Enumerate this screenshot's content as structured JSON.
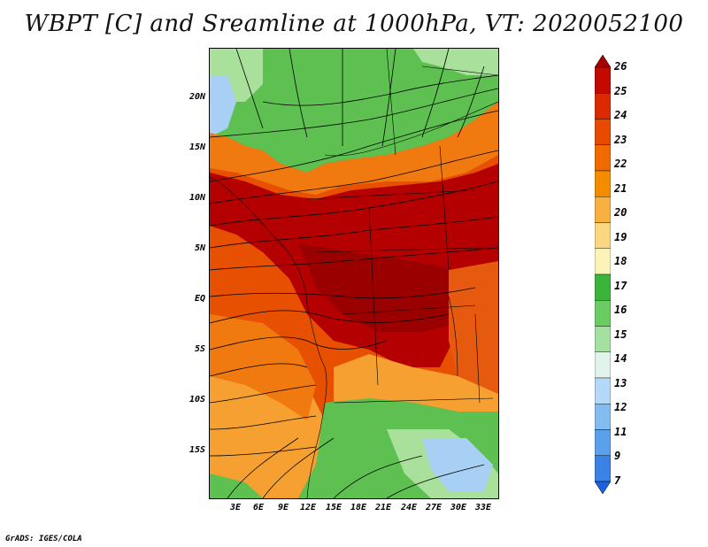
{
  "title": "WBPT [C] and Sreamline at 1000hPa, VT: 2020052100",
  "footer": "GrADS: IGES/COLA",
  "lat_labels": [
    "20N",
    "15N",
    "10N",
    "5N",
    "EQ",
    "5S",
    "10S",
    "15S"
  ],
  "lon_labels": [
    "3E",
    "6E",
    "9E",
    "12E",
    "15E",
    "18E",
    "21E",
    "24E",
    "27E",
    "30E",
    "33E"
  ],
  "colorbar": {
    "levels": [
      "26",
      "25",
      "24",
      "23",
      "22",
      "21",
      "20",
      "19",
      "18",
      "17",
      "16",
      "15",
      "14",
      "13",
      "12",
      "11",
      "9",
      "7"
    ],
    "colors": [
      "#a50000",
      "#c40a00",
      "#dc2a00",
      "#e84a00",
      "#f06a00",
      "#f48c00",
      "#f8b040",
      "#fbd680",
      "#fcf3b8",
      "#3cb43c",
      "#6ccc64",
      "#a4e0a0",
      "#e0f4ec",
      "#b4d8f8",
      "#84bcf0",
      "#5aa0ea",
      "#3a82e4",
      "#1c62dc"
    ]
  },
  "colors": {
    "hot": "#b40000",
    "warm": "#e65000",
    "orange": "#f5a030",
    "green": "#5ec050",
    "lightgreen": "#a8e09c",
    "blue": "#a8cff4",
    "streamline": "#000000"
  }
}
